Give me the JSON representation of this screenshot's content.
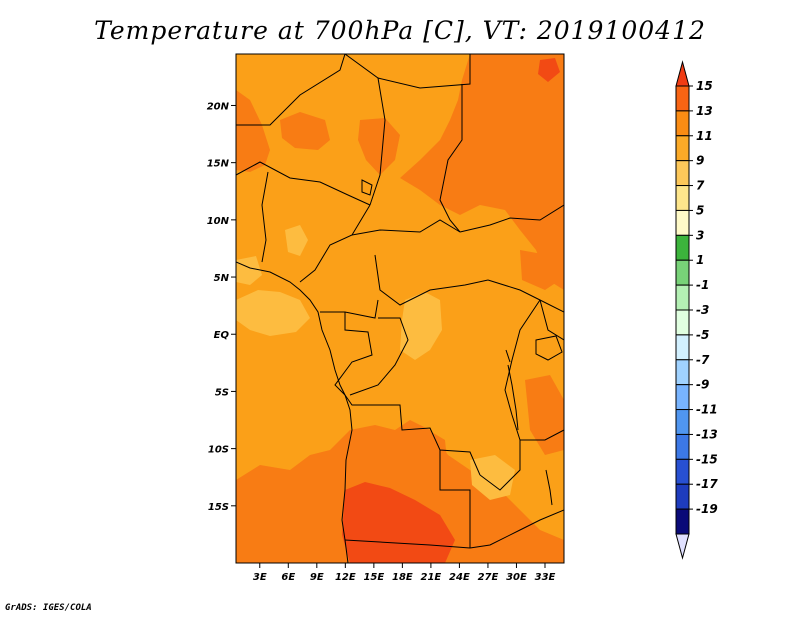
{
  "title": "Temperature at 700hPa [C], VT: 2019100412",
  "footer": "GrADS: IGES/COLA",
  "map": {
    "region": "Central Africa",
    "lat_labels": [
      "20N",
      "15N",
      "10N",
      "5N",
      "EQ",
      "5S",
      "10S",
      "15S"
    ],
    "lat_values": [
      20,
      15,
      10,
      5,
      0,
      -5,
      -10,
      -15
    ],
    "lon_labels": [
      "3E",
      "6E",
      "9E",
      "12E",
      "15E",
      "18E",
      "21E",
      "24E",
      "27E",
      "30E",
      "33E"
    ],
    "lon_values": [
      3,
      6,
      9,
      12,
      15,
      18,
      21,
      24,
      27,
      30,
      33
    ]
  },
  "colorbar": {
    "labels": [
      "15",
      "13",
      "11",
      "9",
      "7",
      "5",
      "3",
      "1",
      "-1",
      "-3",
      "-5",
      "-7",
      "-9",
      "-11",
      "-13",
      "-15",
      "-17",
      "-19"
    ],
    "colors": [
      "#f03c14",
      "#f86414",
      "#fa8c14",
      "#fbaa28",
      "#fdc85a",
      "#fee68c",
      "#fffac8",
      "#3cb43c",
      "#78d278",
      "#b4f0b4",
      "#e1ffe1",
      "#d2f0ff",
      "#a0d2ff",
      "#78b4ff",
      "#5096f0",
      "#3c78e6",
      "#2850d2",
      "#1e3cbe",
      "#0a0a78",
      "#e1e1ff"
    ]
  }
}
